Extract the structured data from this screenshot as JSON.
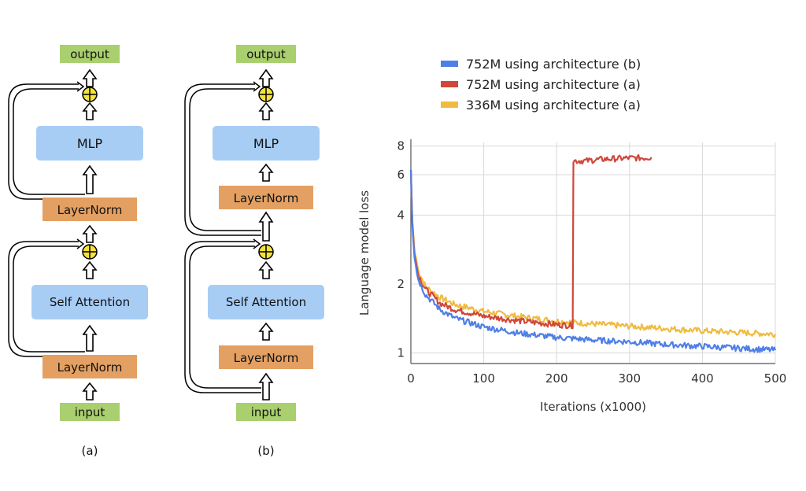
{
  "diagrams": [
    {
      "caption": "(a)",
      "output_label": "output",
      "mlp_label": "MLP",
      "norm_top_label": "LayerNorm",
      "attention_label": "Self Attention",
      "norm_bottom_label": "LayerNorm",
      "input_label": "input"
    },
    {
      "caption": "(b)",
      "output_label": "output",
      "mlp_label": "MLP",
      "norm_top_label": "LayerNorm",
      "attention_label": "Self Attention",
      "norm_bottom_label": "LayerNorm",
      "input_label": "input"
    }
  ],
  "colors": {
    "io_box": "#a9cf6e",
    "block_box": "#a7cdf5",
    "norm_box": "#e3a062",
    "add_node": "#f5e23a",
    "series_b_752M": "#4f7fe6",
    "series_a_752M": "#d0473a",
    "series_a_336M": "#f0bb40"
  },
  "chart_data": {
    "type": "line",
    "title": "",
    "xlabel": "Iterations (x1000)",
    "ylabel": "Language model loss",
    "y_scale": "log",
    "xlim": [
      0,
      500
    ],
    "ylim": [
      0.9,
      8.3
    ],
    "x_ticks": [
      "0",
      "100",
      "200",
      "300",
      "400",
      "500"
    ],
    "y_ticks": [
      "1",
      "2",
      "4",
      "6",
      "8"
    ],
    "grid": true,
    "legend_position": "top",
    "series": [
      {
        "name": "752M using architecture (b)",
        "x": [
          0,
          2,
          5,
          10,
          20,
          40,
          60,
          100,
          150,
          200,
          250,
          300,
          350,
          400,
          450,
          500
        ],
        "y": [
          6.3,
          3.6,
          2.6,
          2.1,
          1.8,
          1.55,
          1.42,
          1.3,
          1.22,
          1.17,
          1.14,
          1.12,
          1.09,
          1.07,
          1.05,
          1.03
        ]
      },
      {
        "name": "752M using architecture (a)",
        "x": [
          0,
          2,
          5,
          10,
          20,
          40,
          60,
          100,
          150,
          200,
          222,
          223,
          240,
          260,
          280,
          300,
          320,
          330
        ],
        "y": [
          6.3,
          3.7,
          2.7,
          2.2,
          1.9,
          1.65,
          1.55,
          1.45,
          1.38,
          1.33,
          1.32,
          6.9,
          6.9,
          7.0,
          7.05,
          7.1,
          7.1,
          7.15
        ]
      },
      {
        "name": "336M using architecture (a)",
        "x": [
          0,
          2,
          5,
          10,
          20,
          40,
          60,
          100,
          150,
          200,
          250,
          300,
          350,
          400,
          450,
          500
        ],
        "y": [
          6.3,
          3.8,
          2.8,
          2.3,
          1.95,
          1.75,
          1.63,
          1.52,
          1.44,
          1.38,
          1.34,
          1.31,
          1.28,
          1.25,
          1.23,
          1.21
        ]
      }
    ]
  }
}
